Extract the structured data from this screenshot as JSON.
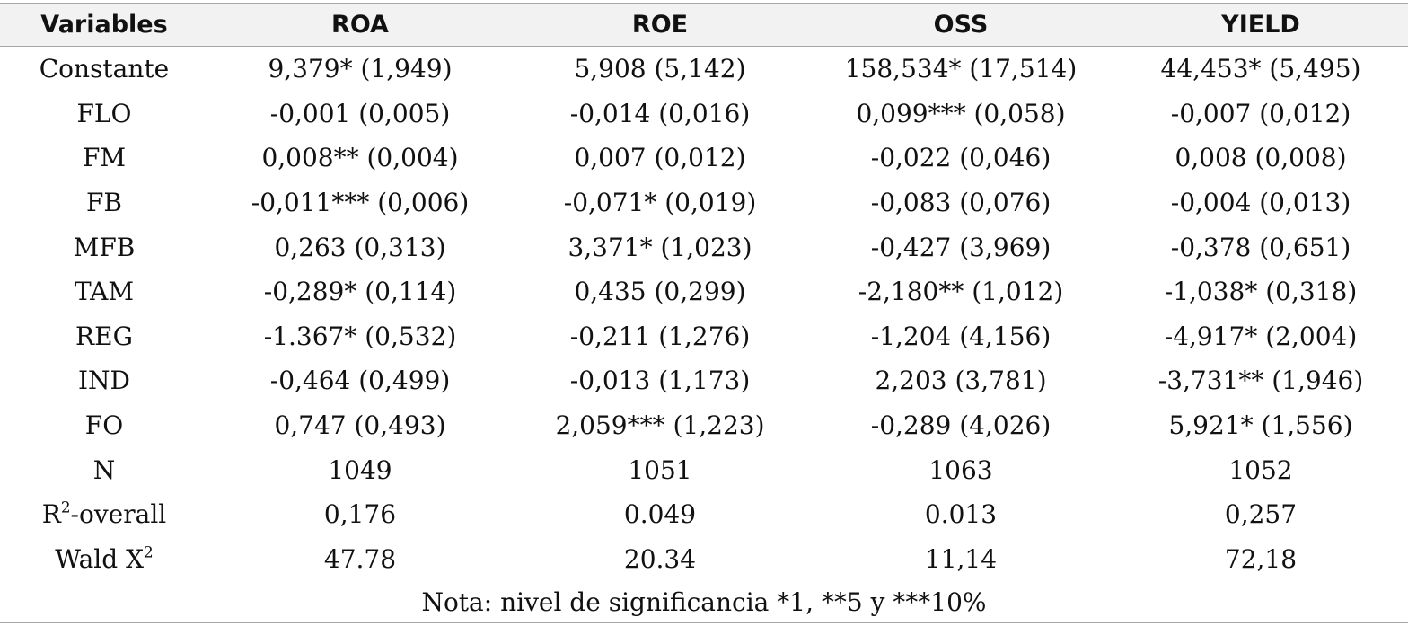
{
  "table": {
    "headers": [
      "Variables",
      "ROA",
      "ROE",
      "OSS",
      "YIELD"
    ],
    "rows": [
      {
        "variable": "Constante",
        "values": [
          "9,379* (1,949)",
          "5,908 (5,142)",
          "158,534* (17,514)",
          "44,453* (5,495)"
        ]
      },
      {
        "variable": "FLO",
        "values": [
          "-0,001 (0,005)",
          "-0,014 (0,016)",
          "0,099*** (0,058)",
          "-0,007 (0,012)"
        ]
      },
      {
        "variable": "FM",
        "values": [
          "0,008** (0,004)",
          "0,007 (0,012)",
          "-0,022 (0,046)",
          "0,008 (0,008)"
        ]
      },
      {
        "variable": "FB",
        "values": [
          "-0,011*** (0,006)",
          "-0,071* (0,019)",
          "-0,083 (0,076)",
          "-0,004 (0,013)"
        ]
      },
      {
        "variable": "MFB",
        "values": [
          "0,263 (0,313)",
          "3,371* (1,023)",
          "-0,427 (3,969)",
          "-0,378 (0,651)"
        ]
      },
      {
        "variable": "TAM",
        "values": [
          "-0,289* (0,114)",
          "0,435 (0,299)",
          "-2,180** (1,012)",
          "-1,038* (0,318)"
        ]
      },
      {
        "variable": "REG",
        "values": [
          "-1.367* (0,532)",
          "-0,211 (1,276)",
          "-1,204 (4,156)",
          "-4,917* (2,004)"
        ]
      },
      {
        "variable": "IND",
        "values": [
          "-0,464 (0,499)",
          "-0,013 (1,173)",
          "2,203 (3,781)",
          "-3,731** (1,946)"
        ]
      },
      {
        "variable": "FO",
        "values": [
          "0,747 (0,493)",
          "2,059*** (1,223)",
          "-0,289 (4,026)",
          "5,921* (1,556)"
        ]
      },
      {
        "variable": "N",
        "values": [
          "1049",
          "1051",
          "1063",
          "1052"
        ]
      },
      {
        "variable_base": "R",
        "variable_sup": "2",
        "variable_rest": "-overall",
        "values": [
          "0,176",
          "0.049",
          "0.013",
          "0,257"
        ]
      },
      {
        "variable_base": "Wald X",
        "variable_sup": "2",
        "variable_rest": "",
        "values": [
          "47.78",
          "20.34",
          "11,14",
          "72,18"
        ]
      }
    ],
    "note": "Nota: nivel de significancia *1, **5 y ***10%"
  }
}
